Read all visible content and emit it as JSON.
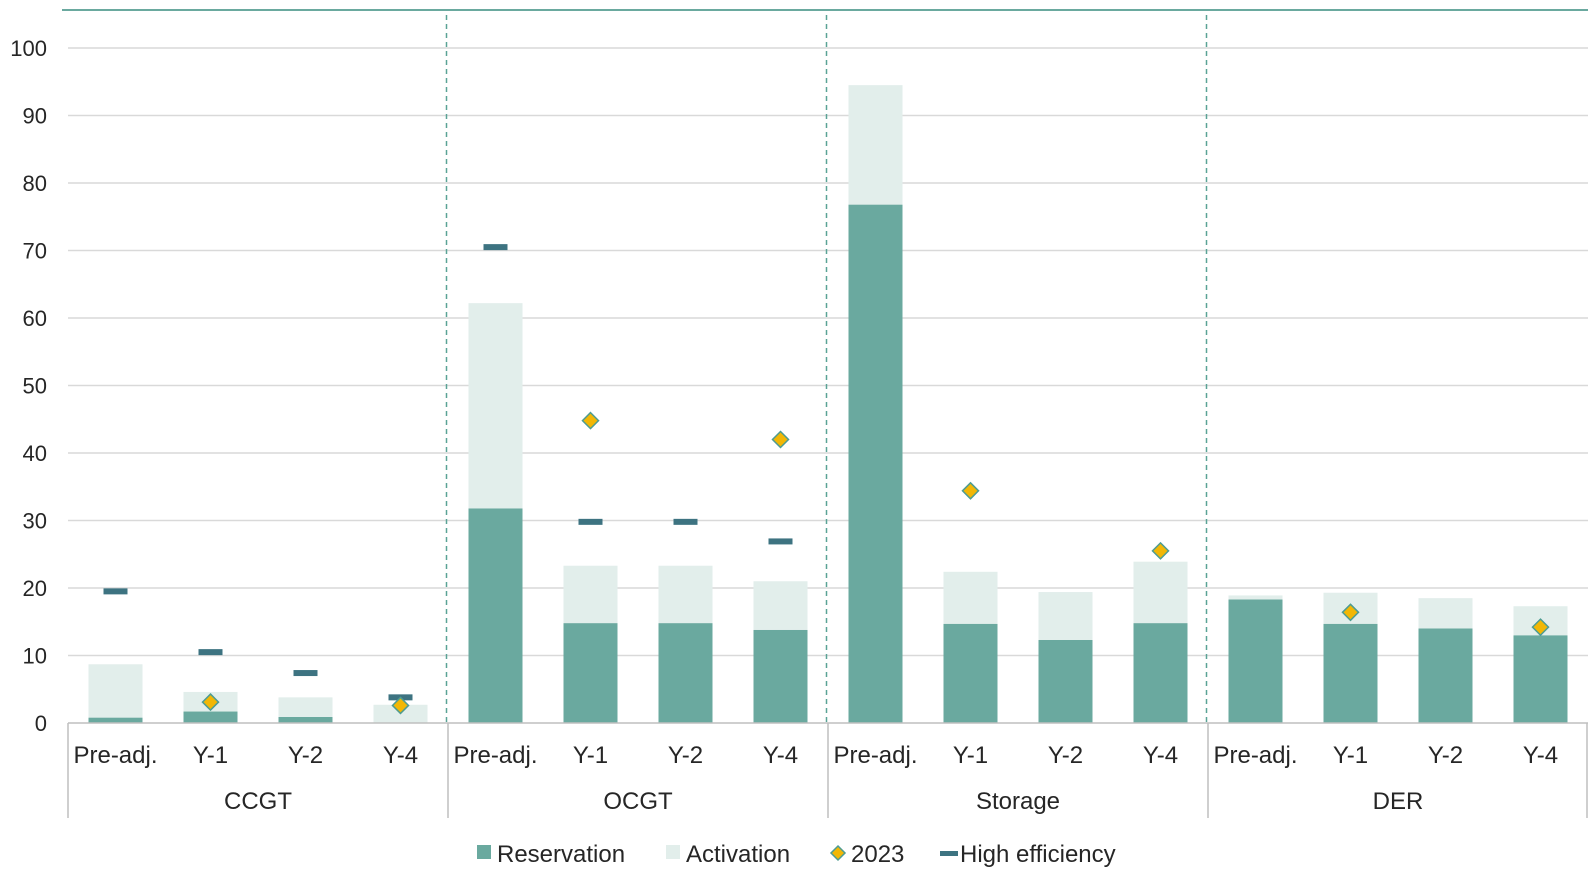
{
  "chart_data": {
    "type": "bar",
    "stacked": true,
    "groups": [
      "CCGT",
      "OCGT",
      "Storage",
      "DER"
    ],
    "categories": [
      "Pre-adj.",
      "Y-1",
      "Y-2",
      "Y-4"
    ],
    "ylim": [
      0,
      100
    ],
    "yticks": [
      0,
      10,
      20,
      30,
      40,
      50,
      60,
      70,
      80,
      90,
      100
    ],
    "grid": true,
    "legend_position": "bottom",
    "colors": {
      "reservation": "#6aa99f",
      "activation": "#e2eeeb",
      "marker_2023": "#f2b705",
      "marker_2023_edge": "#4e9c91",
      "high_efficiency": "#3d7381",
      "grid": "#d9d9d9",
      "axis": "#bfbfbf",
      "divider": "#5aa396"
    },
    "series": [
      {
        "name": "Reservation",
        "kind": "bar",
        "values": {
          "CCGT": [
            0.8,
            1.7,
            0.9,
            0.0
          ],
          "OCGT": [
            31.8,
            14.8,
            14.8,
            13.8
          ],
          "Storage": [
            76.8,
            14.7,
            12.3,
            14.8
          ],
          "DER": [
            18.3,
            14.7,
            14.0,
            13.0
          ]
        }
      },
      {
        "name": "Activation",
        "kind": "bar",
        "values": {
          "CCGT": [
            7.9,
            2.9,
            2.9,
            2.7
          ],
          "OCGT": [
            30.4,
            8.5,
            8.5,
            7.2
          ],
          "Storage": [
            17.7,
            7.7,
            7.1,
            9.1
          ],
          "DER": [
            0.6,
            4.6,
            4.5,
            4.3
          ]
        }
      },
      {
        "name": "2023",
        "kind": "marker",
        "values": {
          "CCGT": [
            null,
            3.1,
            null,
            2.6
          ],
          "OCGT": [
            null,
            44.8,
            null,
            42.0
          ],
          "Storage": [
            null,
            34.4,
            null,
            25.5
          ],
          "DER": [
            null,
            16.4,
            null,
            14.2
          ]
        }
      },
      {
        "name": "High efficiency",
        "kind": "dash",
        "values": {
          "CCGT": [
            19.5,
            10.5,
            7.4,
            3.8
          ],
          "OCGT": [
            70.5,
            29.8,
            29.8,
            26.9
          ],
          "Storage": [
            null,
            null,
            null,
            null
          ],
          "DER": [
            null,
            null,
            null,
            null
          ]
        }
      }
    ]
  }
}
